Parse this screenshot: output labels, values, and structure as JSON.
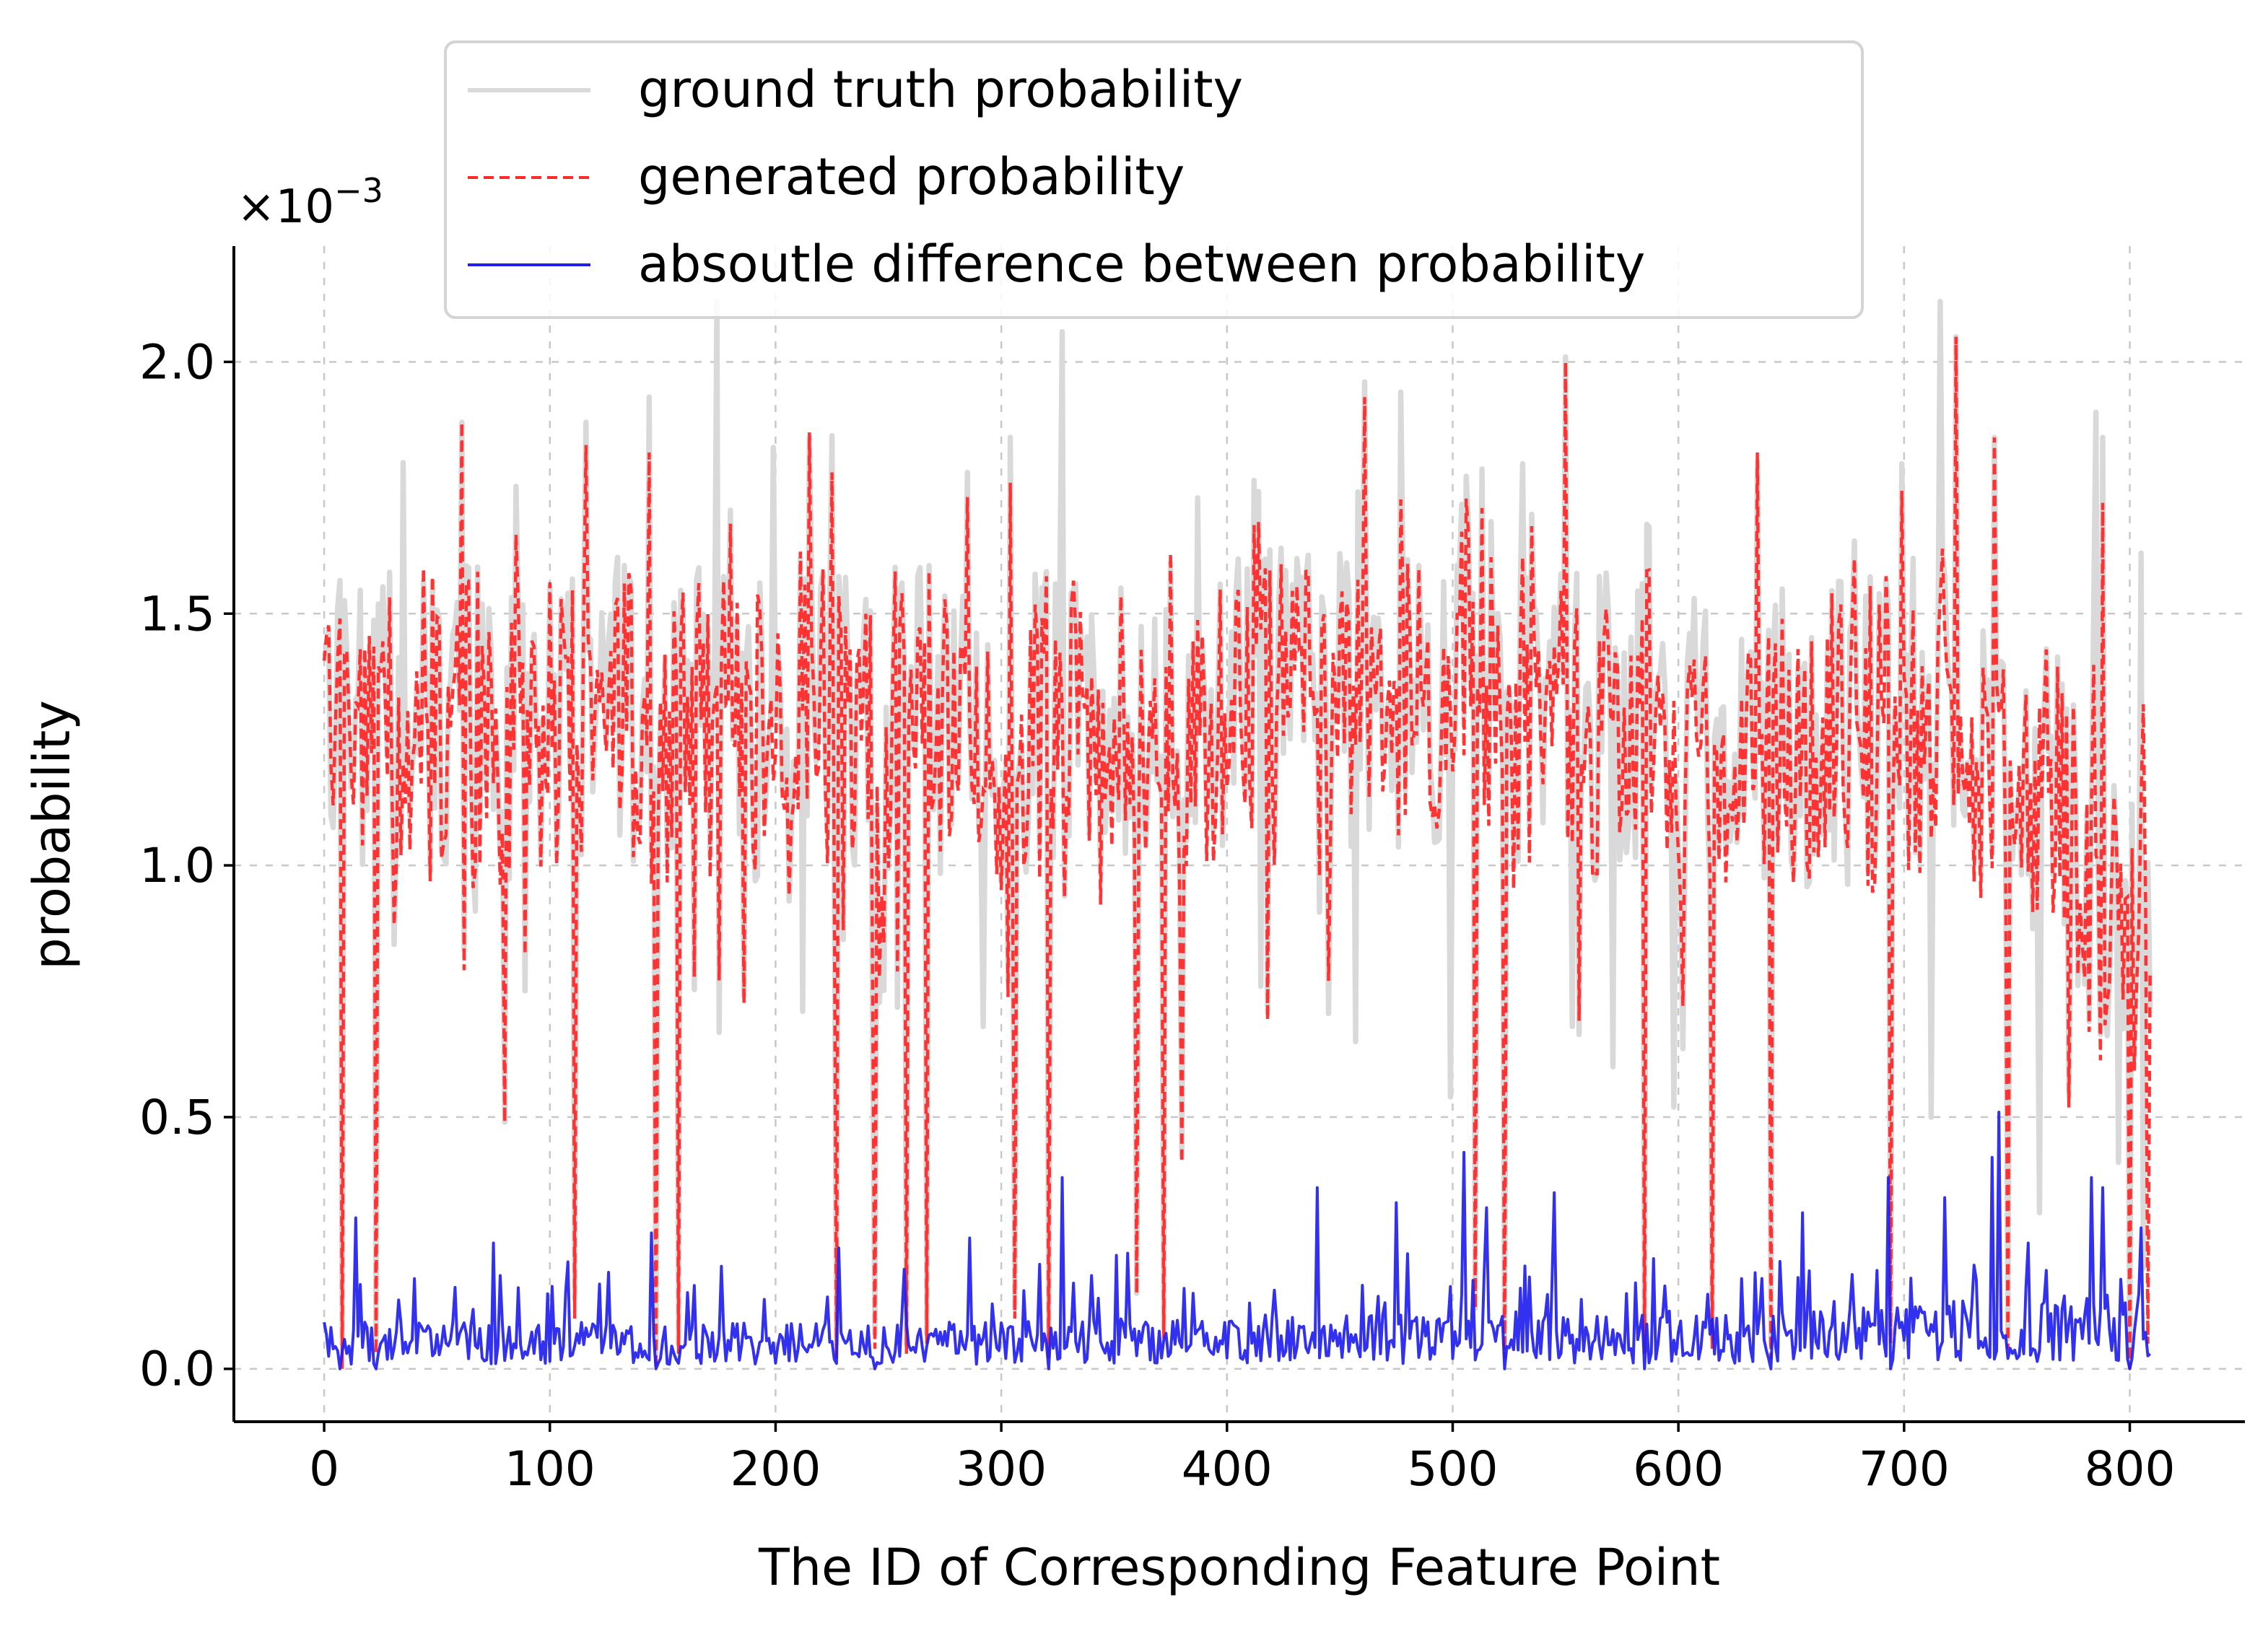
{
  "chart_data": {
    "type": "line",
    "title": "",
    "xlabel": "The ID of Corresponding Feature Point",
    "ylabel": "probability",
    "y_multiplier": {
      "base": "×10",
      "exponent": "−3"
    },
    "xlim": [
      -40,
      851
    ],
    "ylim": [
      -0.105,
      2.23
    ],
    "xticks": [
      0,
      100,
      200,
      300,
      400,
      500,
      600,
      700,
      800
    ],
    "xtick_labels": [
      "0",
      "100",
      "200",
      "300",
      "400",
      "500",
      "600",
      "700",
      "800"
    ],
    "yticks": [
      0.0,
      0.5,
      1.0,
      1.5,
      2.0
    ],
    "ytick_labels": [
      "0.0",
      "0.5",
      "1.0",
      "1.5",
      "2.0"
    ],
    "grid": true,
    "legend_position": "top-center",
    "n_points": 810,
    "series": [
      {
        "name": "ground truth probability",
        "color": "#d9d9d9",
        "style": "solid",
        "baseline": [
          [
            0,
            1.32
          ],
          [
            40,
            1.28
          ],
          [
            80,
            1.3
          ],
          [
            120,
            1.33
          ],
          [
            160,
            1.3
          ],
          [
            200,
            1.35
          ],
          [
            240,
            1.3
          ],
          [
            280,
            1.28
          ],
          [
            320,
            1.27
          ],
          [
            360,
            1.28
          ],
          [
            400,
            1.33
          ],
          [
            440,
            1.33
          ],
          [
            480,
            1.3
          ],
          [
            520,
            1.3
          ],
          [
            560,
            1.28
          ],
          [
            600,
            1.26
          ],
          [
            640,
            1.24
          ],
          [
            680,
            1.26
          ],
          [
            720,
            1.33
          ],
          [
            760,
            1.13
          ],
          [
            790,
            0.95
          ],
          [
            810,
            0.88
          ]
        ],
        "peaks": [
          [
            35,
            1.8
          ],
          [
            61,
            1.88
          ],
          [
            144,
            1.93
          ],
          [
            174,
            2.12
          ],
          [
            199,
            1.83
          ],
          [
            215,
            1.85
          ],
          [
            304,
            1.85
          ],
          [
            327,
            2.06
          ],
          [
            387,
            1.73
          ],
          [
            461,
            1.96
          ],
          [
            477,
            1.94
          ],
          [
            550,
            2.01
          ],
          [
            635,
            1.8
          ],
          [
            716,
            2.12
          ],
          [
            723,
            2.05
          ],
          [
            740,
            1.85
          ],
          [
            785,
            1.9
          ],
          [
            788,
            1.85
          ],
          [
            805,
            1.62
          ]
        ],
        "dips": [
          [
            3,
            1.1
          ],
          [
            8,
            0.05
          ],
          [
            23,
            0.06
          ],
          [
            80,
            0.49
          ],
          [
            111,
            0.14
          ],
          [
            147,
            0.03
          ],
          [
            157,
            0.05
          ],
          [
            192,
            0.98
          ],
          [
            212,
            0.71
          ],
          [
            227,
            0.05
          ],
          [
            244,
            0.07
          ],
          [
            258,
            0.05
          ],
          [
            267,
            0.07
          ],
          [
            292,
            0.68
          ],
          [
            306,
            0.12
          ],
          [
            321,
            0.05
          ],
          [
            360,
            0.15
          ],
          [
            372,
            0.08
          ],
          [
            380,
            0.42
          ],
          [
            415,
            0.76
          ],
          [
            457,
            0.65
          ],
          [
            499,
            0.54
          ],
          [
            510,
            0.12
          ],
          [
            523,
            0.05
          ],
          [
            553,
            0.68
          ],
          [
            571,
            0.6
          ],
          [
            585,
            0.06
          ],
          [
            598,
            0.52
          ],
          [
            615,
            0.06
          ],
          [
            641,
            0.05
          ],
          [
            694,
            0.07
          ],
          [
            712,
            0.5
          ],
          [
            746,
            0.06
          ],
          [
            760,
            0.31
          ],
          [
            795,
            0.41
          ],
          [
            800,
            0.03
          ],
          [
            806,
            0.2
          ]
        ]
      },
      {
        "name": "generated probability",
        "color": "#ff2a2a",
        "style": "dashed",
        "baseline": [
          [
            0,
            1.3
          ],
          [
            40,
            1.26
          ],
          [
            80,
            1.28
          ],
          [
            120,
            1.3
          ],
          [
            160,
            1.28
          ],
          [
            200,
            1.32
          ],
          [
            240,
            1.27
          ],
          [
            280,
            1.26
          ],
          [
            320,
            1.25
          ],
          [
            360,
            1.26
          ],
          [
            400,
            1.3
          ],
          [
            440,
            1.3
          ],
          [
            480,
            1.28
          ],
          [
            520,
            1.27
          ],
          [
            560,
            1.26
          ],
          [
            600,
            1.24
          ],
          [
            640,
            1.22
          ],
          [
            680,
            1.24
          ],
          [
            720,
            1.3
          ],
          [
            760,
            1.12
          ],
          [
            790,
            0.93
          ],
          [
            810,
            0.86
          ]
        ],
        "peaks": [
          [
            61,
            1.88
          ],
          [
            144,
            1.82
          ],
          [
            215,
            1.86
          ],
          [
            304,
            1.76
          ],
          [
            461,
            1.93
          ],
          [
            550,
            2.0
          ],
          [
            635,
            1.82
          ],
          [
            723,
            2.05
          ],
          [
            740,
            1.85
          ],
          [
            788,
            1.72
          ],
          [
            806,
            1.32
          ]
        ],
        "dips": [
          [
            8,
            0.0
          ],
          [
            23,
            0.03
          ],
          [
            80,
            0.49
          ],
          [
            111,
            0.1
          ],
          [
            147,
            0.0
          ],
          [
            157,
            0.03
          ],
          [
            227,
            0.02
          ],
          [
            244,
            0.04
          ],
          [
            258,
            0.03
          ],
          [
            267,
            0.05
          ],
          [
            306,
            0.1
          ],
          [
            321,
            0.02
          ],
          [
            360,
            0.15
          ],
          [
            372,
            0.06
          ],
          [
            380,
            0.41
          ],
          [
            510,
            0.12
          ],
          [
            523,
            0.02
          ],
          [
            585,
            0.03
          ],
          [
            615,
            0.04
          ],
          [
            641,
            0.02
          ],
          [
            694,
            0.05
          ],
          [
            746,
            0.04
          ],
          [
            800,
            0.0
          ],
          [
            808,
            0.05
          ]
        ]
      },
      {
        "name": "absoutle difference between probability",
        "color": "#2020ee",
        "style": "solid",
        "baseline": [
          [
            0,
            0.06
          ],
          [
            100,
            0.06
          ],
          [
            200,
            0.06
          ],
          [
            300,
            0.06
          ],
          [
            400,
            0.07
          ],
          [
            500,
            0.07
          ],
          [
            600,
            0.07
          ],
          [
            700,
            0.08
          ],
          [
            800,
            0.1
          ],
          [
            810,
            0.1
          ]
        ],
        "peaks": [
          [
            14,
            0.3
          ],
          [
            75,
            0.25
          ],
          [
            145,
            0.27
          ],
          [
            228,
            0.24
          ],
          [
            286,
            0.26
          ],
          [
            327,
            0.38
          ],
          [
            440,
            0.36
          ],
          [
            475,
            0.33
          ],
          [
            505,
            0.43
          ],
          [
            515,
            0.32
          ],
          [
            545,
            0.35
          ],
          [
            655,
            0.31
          ],
          [
            693,
            0.38
          ],
          [
            718,
            0.34
          ],
          [
            739,
            0.42
          ],
          [
            742,
            0.51
          ],
          [
            783,
            0.38
          ],
          [
            788,
            0.36
          ],
          [
            805,
            0.28
          ]
        ],
        "dips": [
          [
            7,
            0.0
          ],
          [
            23,
            0.0
          ],
          [
            147,
            0.0
          ],
          [
            244,
            0.0
          ],
          [
            321,
            0.0
          ],
          [
            523,
            0.0
          ],
          [
            585,
            0.0
          ],
          [
            641,
            0.0
          ],
          [
            694,
            0.0
          ],
          [
            800,
            0.0
          ]
        ]
      }
    ]
  }
}
